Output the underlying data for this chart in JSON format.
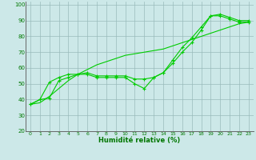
{
  "x": [
    0,
    1,
    2,
    3,
    4,
    5,
    6,
    7,
    8,
    9,
    10,
    11,
    12,
    13,
    14,
    15,
    16,
    17,
    18,
    19,
    20,
    21,
    22,
    23
  ],
  "line1": [
    37,
    40,
    41,
    52,
    54,
    56,
    56,
    54,
    54,
    54,
    54,
    50,
    47,
    54,
    57,
    65,
    73,
    79,
    86,
    93,
    94,
    92,
    90,
    90
  ],
  "line2": [
    37,
    40,
    51,
    54,
    56,
    56,
    57,
    55,
    55,
    55,
    55,
    53,
    53,
    54,
    57,
    63,
    70,
    76,
    84,
    93,
    93,
    91,
    89,
    89
  ],
  "line3": [
    37,
    38,
    42,
    47,
    52,
    56,
    59,
    62,
    64,
    66,
    68,
    69,
    70,
    71,
    72,
    74,
    76,
    78,
    80,
    82,
    84,
    86,
    88,
    89
  ],
  "line_color": "#00cc00",
  "bg_color": "#cce8e8",
  "grid_color": "#99bbbb",
  "axis_color": "#007700",
  "xlabel": "Humidité relative (%)",
  "ylim": [
    20,
    102
  ],
  "xlim": [
    -0.5,
    23.5
  ],
  "yticks": [
    20,
    30,
    40,
    50,
    60,
    70,
    80,
    90,
    100
  ],
  "xticks": [
    0,
    1,
    2,
    3,
    4,
    5,
    6,
    7,
    8,
    9,
    10,
    11,
    12,
    13,
    14,
    15,
    16,
    17,
    18,
    19,
    20,
    21,
    22,
    23
  ]
}
